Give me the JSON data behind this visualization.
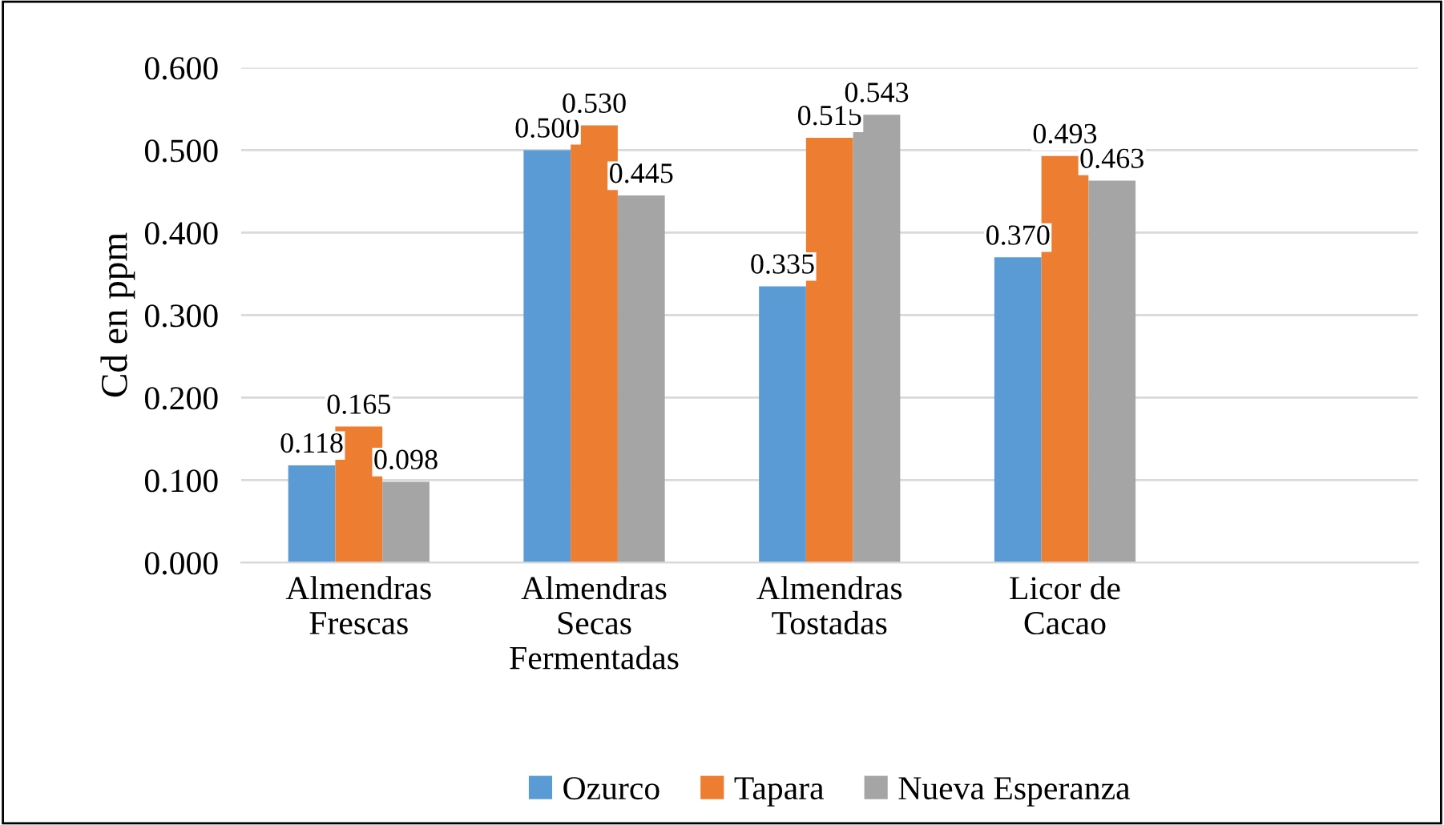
{
  "chart_data": {
    "type": "bar",
    "ylabel": "Cd en ppm",
    "categories": [
      "Almendras\nFrescas",
      "Almendras\nSecas\nFermentadas",
      "Almendras\nTostadas",
      "Licor de\nCacao",
      null
    ],
    "series": [
      {
        "name": "Ozurco",
        "color": "#5b9bd5",
        "values": [
          0.118,
          0.5,
          0.335,
          0.37,
          null
        ],
        "value_labels": [
          "0.118",
          "0.500",
          "0.335",
          "0.370",
          null
        ]
      },
      {
        "name": "Tapara",
        "color": "#ed7d31",
        "values": [
          0.165,
          0.53,
          0.515,
          0.493,
          null
        ],
        "value_labels": [
          "0.165",
          "0.530",
          "0.515",
          "0.493",
          null
        ]
      },
      {
        "name": "Nueva Esperanza",
        "color": "#a5a5a5",
        "values": [
          0.098,
          0.445,
          0.543,
          0.463,
          null
        ],
        "value_labels": [
          "0.098",
          "0.445",
          "0.543",
          "0.463",
          null
        ]
      }
    ],
    "ylim": [
      0,
      0.6
    ],
    "yticks": [
      {
        "value": 0,
        "label": "0.000"
      },
      {
        "value": 0.1,
        "label": "0.100"
      },
      {
        "value": 0.2,
        "label": "0.200"
      },
      {
        "value": 0.3,
        "label": "0.300"
      },
      {
        "value": 0.4,
        "label": "0.400"
      },
      {
        "value": 0.5,
        "label": "0.500"
      },
      {
        "value": 0.6,
        "label": "0.600"
      }
    ],
    "grid": "y",
    "legend": "bottom"
  }
}
